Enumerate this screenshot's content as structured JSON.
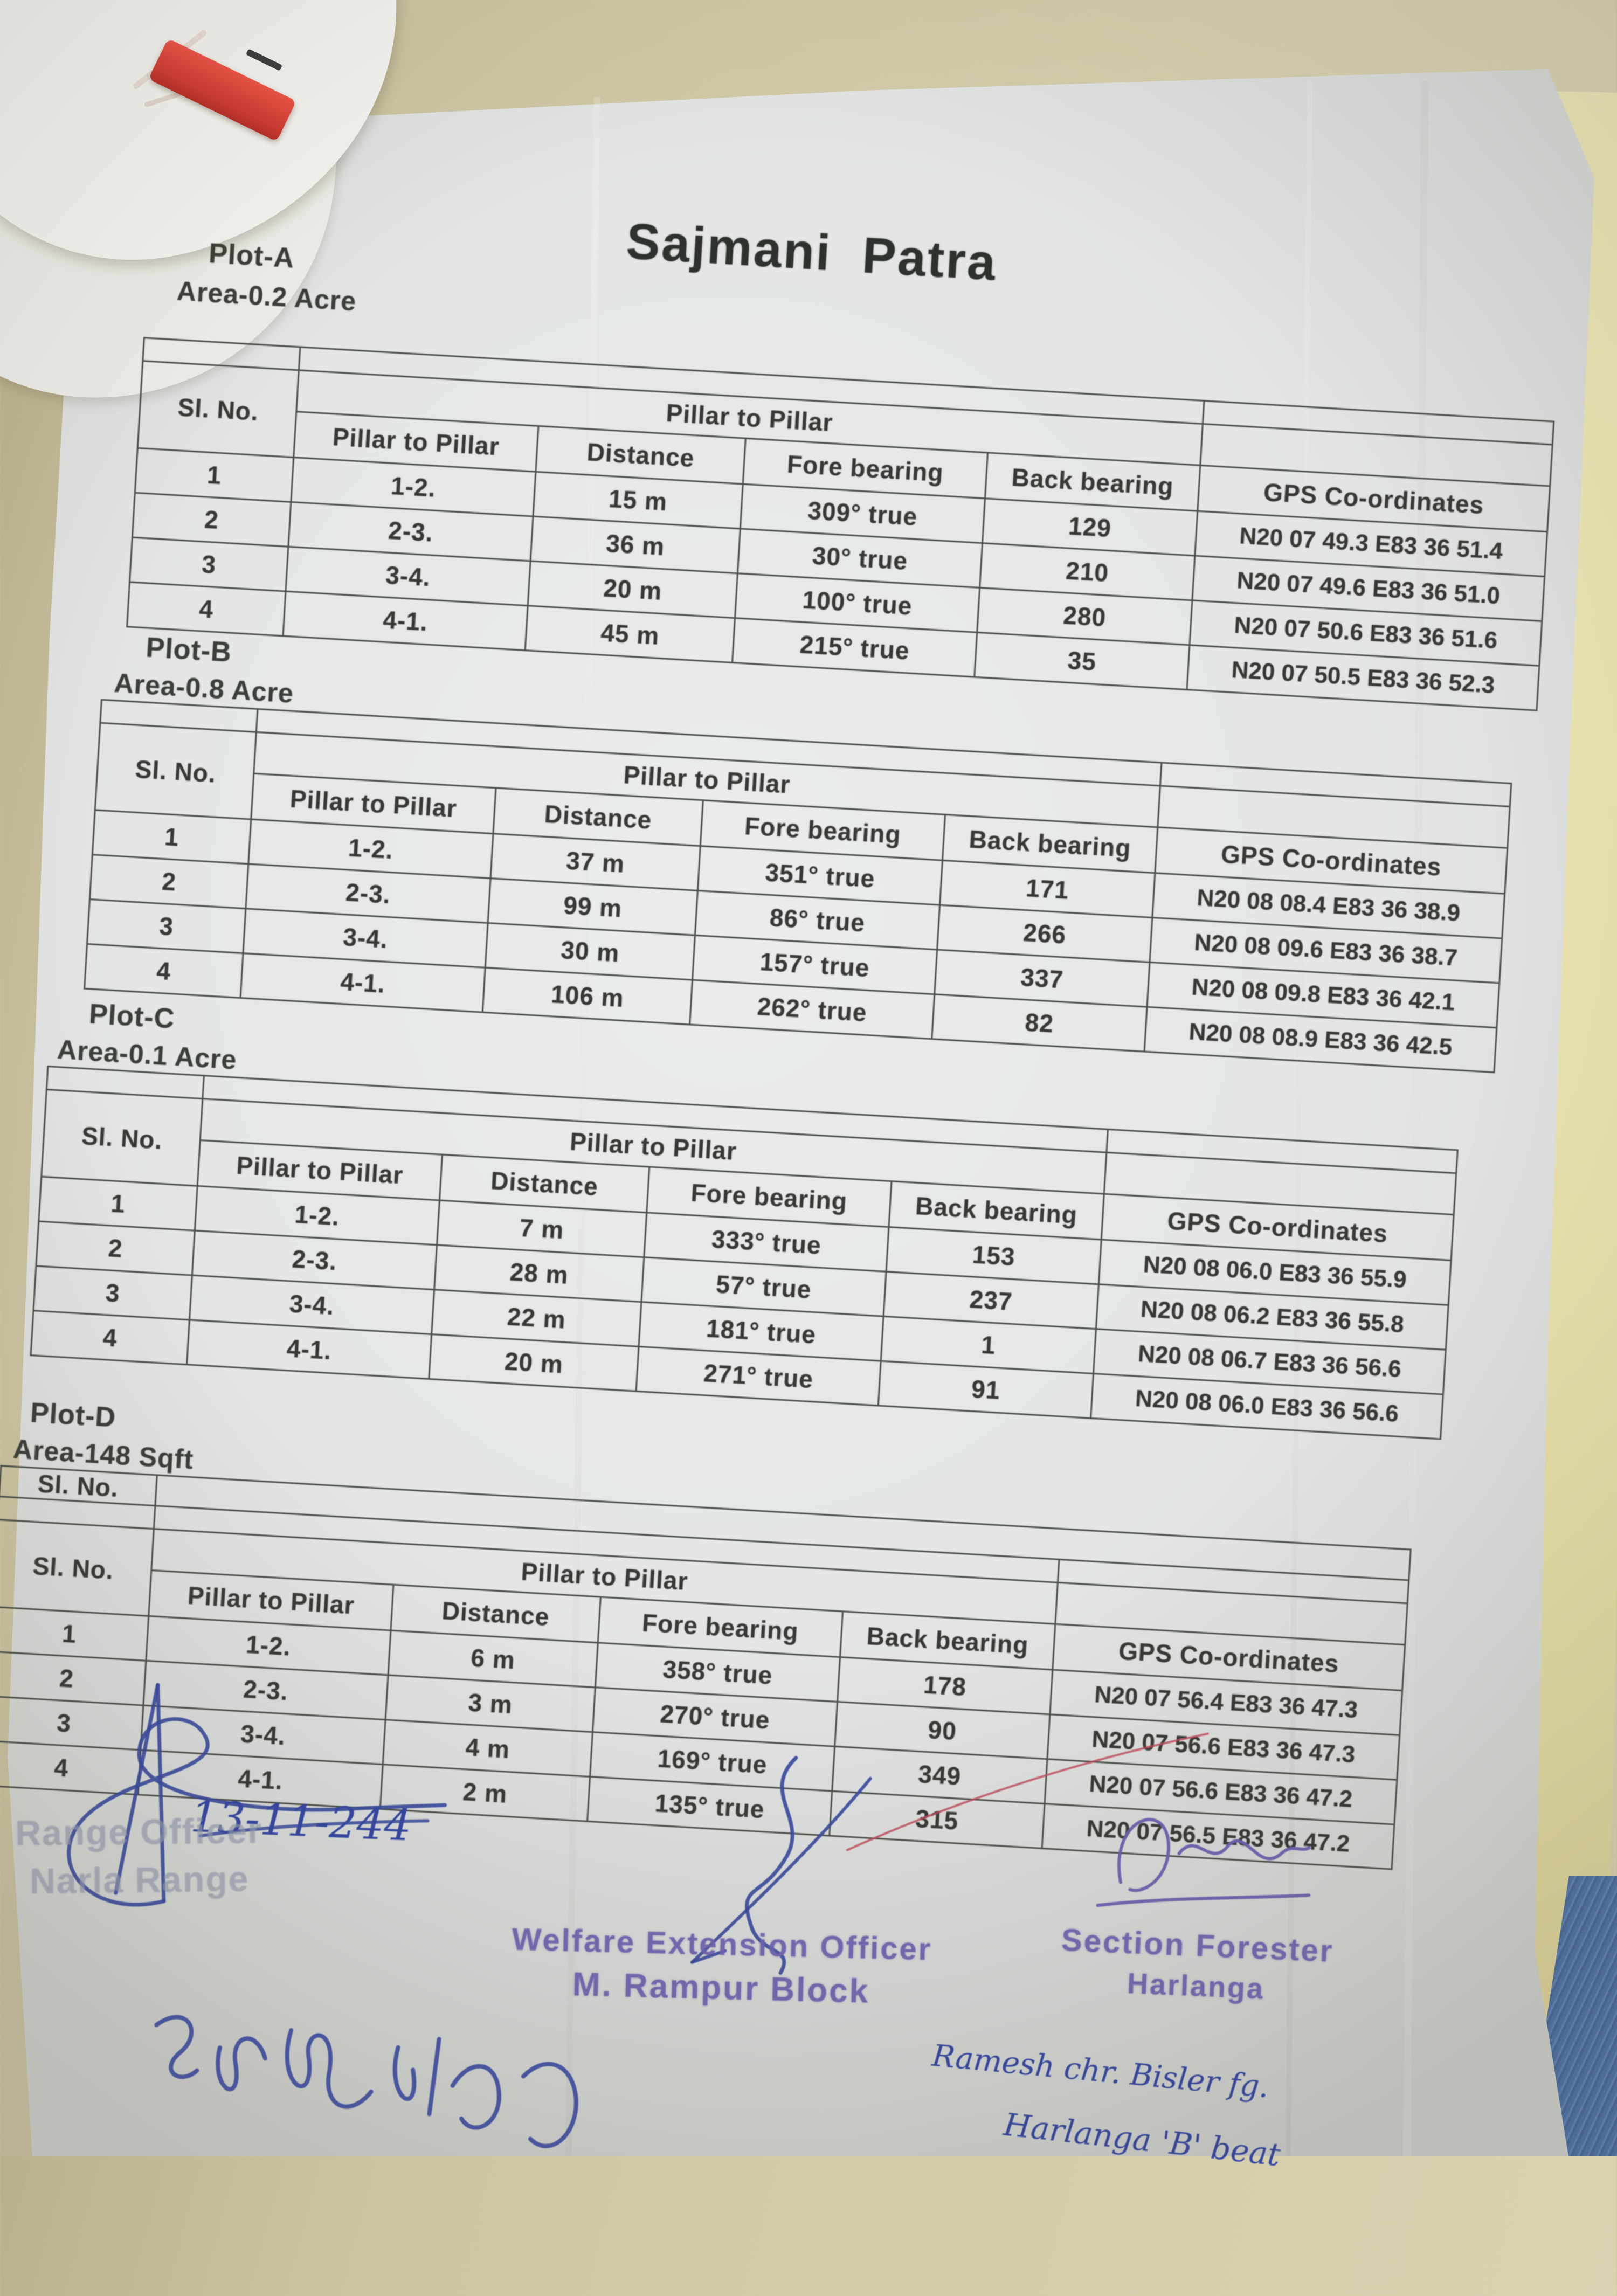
{
  "title": "Sajmani Patra",
  "table_headers": {
    "sl_no": "Sl. No.",
    "pillar_group": "Pillar to Pillar",
    "pillar": "Pillar to Pillar",
    "distance": "Distance",
    "fore_bearing": "Fore bearing",
    "back_bearing": "Back bearing",
    "gps": "GPS Co-ordinates"
  },
  "plots": [
    {
      "label": "Plot-A",
      "area": "Area-0.2 Acre",
      "rows": [
        [
          "1",
          "1-2.",
          "15 m",
          "309° true",
          "129",
          "N20 07 49.3 E83 36 51.4"
        ],
        [
          "2",
          "2-3.",
          "36 m",
          "30° true",
          "210",
          "N20 07 49.6 E83 36 51.0"
        ],
        [
          "3",
          "3-4.",
          "20 m",
          "100° true",
          "280",
          "N20 07 50.6 E83 36 51.6"
        ],
        [
          "4",
          "4-1.",
          "45 m",
          "215° true",
          "35",
          "N20 07 50.5 E83 36 52.3"
        ]
      ]
    },
    {
      "label": "Plot-B",
      "area": "Area-0.8 Acre",
      "rows": [
        [
          "1",
          "1-2.",
          "37 m",
          "351° true",
          "171",
          "N20 08 08.4 E83 36 38.9"
        ],
        [
          "2",
          "2-3.",
          "99 m",
          "86° true",
          "266",
          "N20 08 09.6 E83 36 38.7"
        ],
        [
          "3",
          "3-4.",
          "30 m",
          "157° true",
          "337",
          "N20 08 09.8 E83 36 42.1"
        ],
        [
          "4",
          "4-1.",
          "106 m",
          "262° true",
          "82",
          "N20 08 08.9 E83 36 42.5"
        ]
      ]
    },
    {
      "label": "Plot-C",
      "area": "Area-0.1 Acre",
      "rows": [
        [
          "1",
          "1-2.",
          "7 m",
          "333° true",
          "153",
          "N20 08 06.0 E83 36 55.9"
        ],
        [
          "2",
          "2-3.",
          "28 m",
          "57° true",
          "237",
          "N20 08 06.2 E83 36 55.8"
        ],
        [
          "3",
          "3-4.",
          "22 m",
          "181° true",
          "1",
          "N20 08 06.7 E83 36 56.6"
        ],
        [
          "4",
          "4-1.",
          "20 m",
          "271° true",
          "91",
          "N20 08 06.0 E83 36 56.6"
        ]
      ]
    },
    {
      "label": "Plot-D",
      "area": "Area-148 Sqft",
      "extra_header": "Sl. No.",
      "rows": [
        [
          "1",
          "1-2.",
          "6 m",
          "358° true",
          "178",
          "N20 07 56.4 E83 36 47.3"
        ],
        [
          "2",
          "2-3.",
          "3 m",
          "270° true",
          "90",
          "N20 07 56.6 E83 36 47.3"
        ],
        [
          "3",
          "3-4.",
          "4 m",
          "169° true",
          "349",
          "N20 07 56.6 E83 36 47.2"
        ],
        [
          "4",
          "4-1.",
          "2 m",
          "135° true",
          "315",
          "N20 07 56.5 E83 36 47.2"
        ]
      ]
    }
  ],
  "annotations": {
    "date_handwritten": "13-11-244",
    "range_officer_stamp": [
      "Range Officer",
      "Narla Range"
    ],
    "welfare_stamp": [
      "Welfare Extension Officer",
      "M. Rampur Block"
    ],
    "forester_stamp": [
      "Section Forester",
      "Harlanga"
    ],
    "handwritten_name": "Ramesh chr. Bisler fg.",
    "handwritten_beat": "Harlanga 'B' beat"
  },
  "colors": {
    "pen_blue": "#3648a0",
    "stamp_purple": "#7064b4",
    "stamp_faded": "#97a0b4",
    "red_mark": "#c2475a",
    "red_tag": "#d03a30",
    "paper": "#e3e6e5",
    "desk_tan": "#cdc5a2",
    "side_sheet": "#e9e2ac",
    "denim_blue": "#4e73aa",
    "table_line": "#4b5049",
    "ink": "#363a33"
  }
}
